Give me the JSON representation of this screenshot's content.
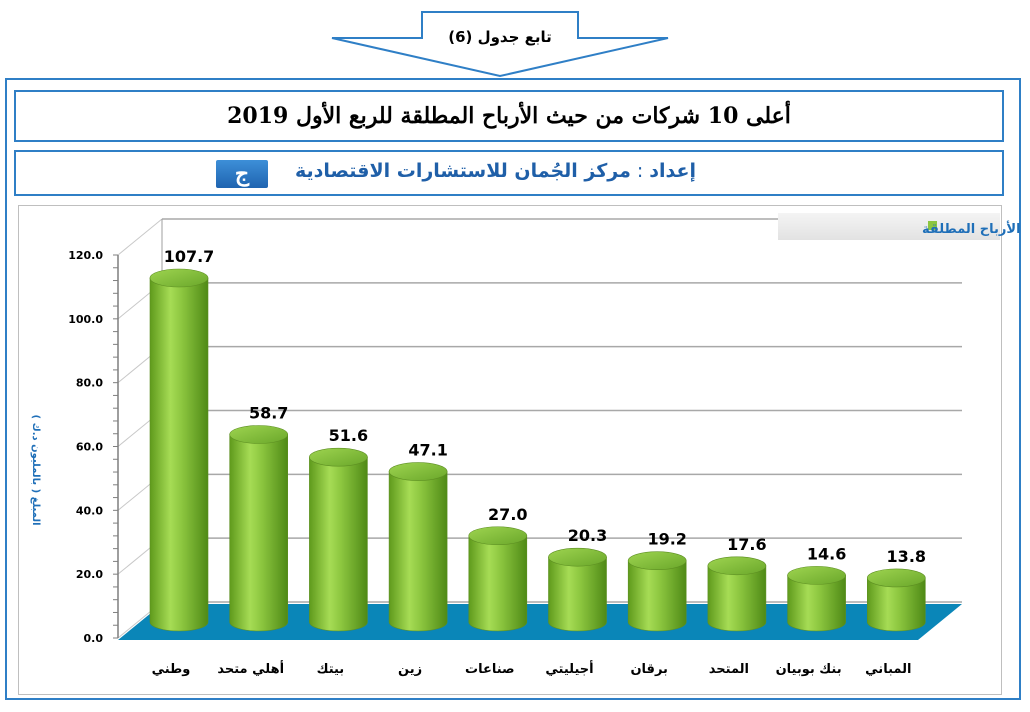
{
  "banner": {
    "text": "تابع جدول (6)"
  },
  "title": "أعلى 10 شركات من حيث الأرباح المطلقة للربع الأول 2019",
  "subtitle": {
    "label": "إعداد",
    "separator": ":",
    "org": "مركز الجُمان للاستشارات الاقتصادية"
  },
  "logo": {
    "text": "ج"
  },
  "colors": {
    "frame": "#2f7fc6",
    "bar": "#8cc63f",
    "floor": "#0a86b8",
    "subtitle": "#1f5fa8",
    "y_label": "#1f6fb8"
  },
  "chart_data": {
    "type": "bar",
    "categories": [
      "وطني",
      "أهلي متحد",
      "بيتك",
      "زين",
      "صناعات",
      "أجيليتي",
      "برقان",
      "المتحد",
      "بنك بوبيان",
      "المباني"
    ],
    "series": [
      {
        "name": "الأرباح المطلقة",
        "values": [
          107.7,
          58.7,
          51.6,
          47.1,
          27.0,
          20.3,
          19.2,
          17.6,
          14.6,
          13.8
        ]
      }
    ],
    "data_labels": [
      "107.7",
      "58.7",
      "51.6",
      "47.1",
      "27.0",
      "20.3",
      "19.2",
      "17.6",
      "14.6",
      "13.8"
    ],
    "ylabel": "المبلغ ( بالمليون د.ك )",
    "yticks": [
      "0.0",
      "20.0",
      "40.0",
      "60.0",
      "80.0",
      "100.0",
      "120.0"
    ],
    "ylim": [
      0,
      120
    ],
    "grid": true,
    "legend": "top-right",
    "style": "3d-cylinder"
  }
}
